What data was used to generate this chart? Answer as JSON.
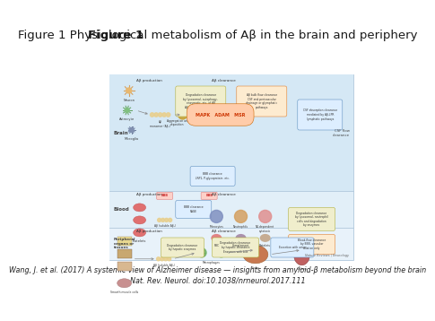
{
  "title_bold": "Figure 1",
  "title_normal": " Physiological metabolism of Aβ in the brain and periphery",
  "title_fontsize": 9.5,
  "citation_line1": "Wang, J. et al. (2017) A systemic view of Alzheimer disease — insights from amyloid-β metabolism beyond the brain",
  "citation_line2": "Nat. Rev. Neurol. doi:10.1038/nrneurol.2017.111",
  "citation_fontsize": 5.8,
  "background_color": "#ffffff",
  "diagram_facecolor": "#e8f3fb",
  "brain_bg": "#d5e8f5",
  "blood_bg": "#e2eff8",
  "peripheral_bg": "#e8f2fa",
  "inner_white_bg": "#f5f9fd",
  "source_label": "Nature Reviews | Neurology"
}
